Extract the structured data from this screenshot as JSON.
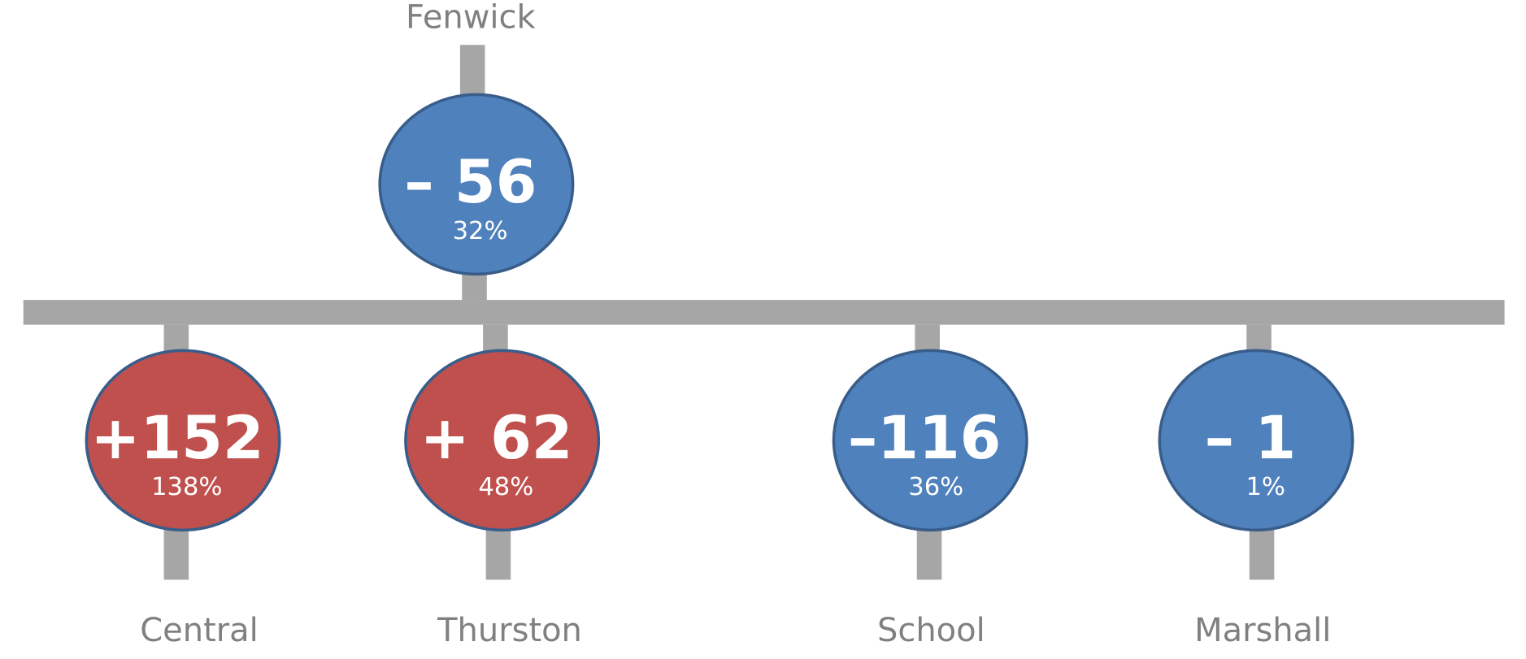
{
  "nodes": [
    {
      "label": "Fenwick",
      "change": "– 56",
      "percent": "32%"
    },
    {
      "label": "Central",
      "change": "+152",
      "percent": "138%"
    },
    {
      "label": "Thurston",
      "change": "+ 62",
      "percent": "48%"
    },
    {
      "label": "School",
      "change": "–116",
      "percent": "36%"
    },
    {
      "label": "Marshall",
      "change": "– 1",
      "percent": "1%"
    }
  ]
}
